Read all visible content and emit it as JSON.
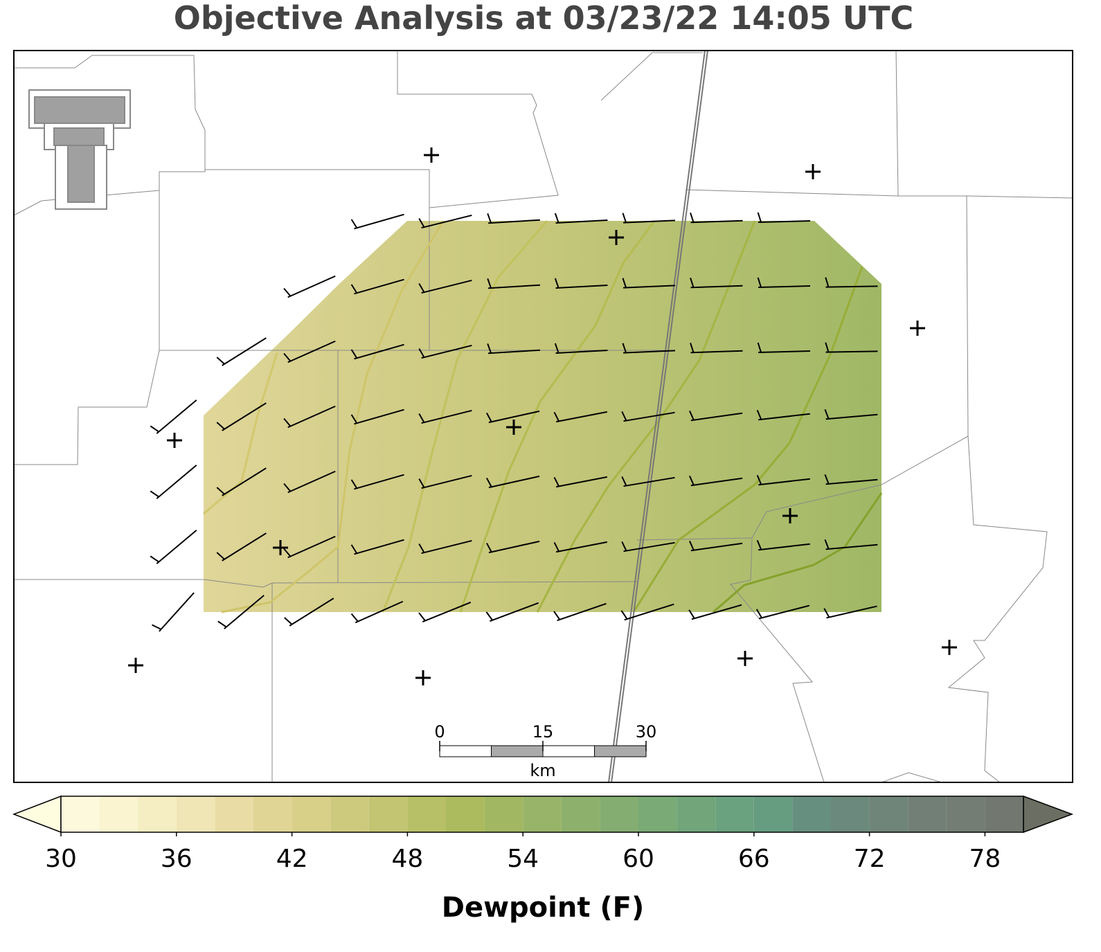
{
  "title": "Objective Analysis at 03/23/22 14:05 UTC",
  "colorbar": {
    "label": "Dewpoint (F)",
    "lim": [
      30,
      80
    ],
    "levels": [
      30,
      32,
      34,
      36,
      38,
      40,
      42,
      44,
      46,
      48,
      50,
      52,
      54,
      56,
      58,
      60,
      62,
      64,
      66,
      68,
      70,
      72,
      74,
      76,
      78,
      80
    ],
    "colors": [
      "#fdf9dc",
      "#faf4d0",
      "#f5eec3",
      "#f0e5b5",
      "#e9dca5",
      "#e1d596",
      "#d8cf89",
      "#cdca7d",
      "#c3c572",
      "#b8c067",
      "#adbb5f",
      "#a2b761",
      "#98b468",
      "#8db06c",
      "#84ad71",
      "#7aaa76",
      "#72a67a",
      "#6aa17e",
      "#669c80",
      "#678f7f",
      "#6b897c",
      "#6f8579",
      "#717f76",
      "#737d74",
      "#727770"
    ],
    "under_color": "#fffde0",
    "over_color": "#6b6f63",
    "ticks": [
      30,
      36,
      42,
      48,
      54,
      60,
      66,
      72,
      78
    ]
  },
  "scale_bar": {
    "ticks": [
      0,
      15,
      30
    ],
    "lim": [
      0,
      30
    ],
    "unit": "km"
  }
}
